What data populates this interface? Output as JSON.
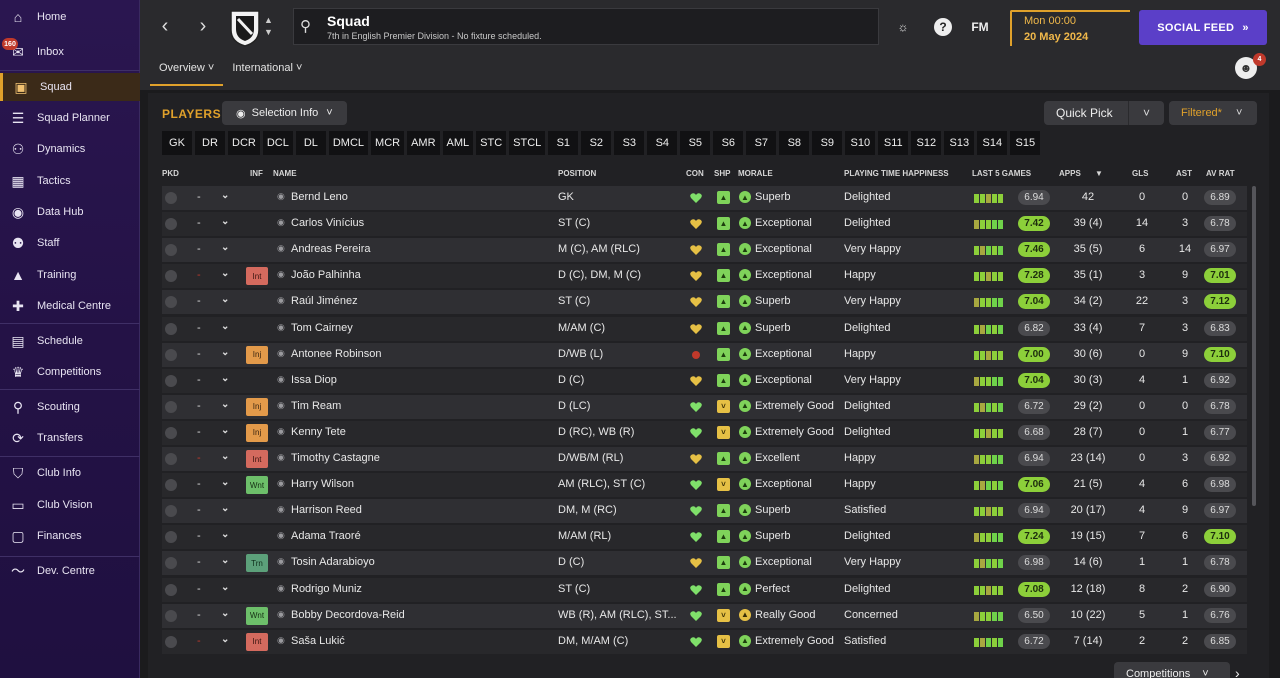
{
  "sidebar": {
    "inbox_badge": "160",
    "items": [
      {
        "label": "Home",
        "icon": "home-icon"
      },
      {
        "label": "Inbox",
        "icon": "inbox-icon"
      },
      {
        "label": "Squad",
        "icon": "shirt-icon"
      },
      {
        "label": "Squad Planner",
        "icon": "planner-icon"
      },
      {
        "label": "Dynamics",
        "icon": "dynamics-icon"
      },
      {
        "label": "Tactics",
        "icon": "tactics-icon"
      },
      {
        "label": "Data Hub",
        "icon": "data-hub-icon"
      },
      {
        "label": "Staff",
        "icon": "staff-icon"
      },
      {
        "label": "Training",
        "icon": "training-icon"
      },
      {
        "label": "Medical Centre",
        "icon": "medical-icon"
      },
      {
        "label": "Schedule",
        "icon": "calendar-icon"
      },
      {
        "label": "Competitions",
        "icon": "trophy-icon"
      },
      {
        "label": "Scouting",
        "icon": "search-icon"
      },
      {
        "label": "Transfers",
        "icon": "transfer-icon"
      },
      {
        "label": "Club Info",
        "icon": "shield-icon"
      },
      {
        "label": "Club Vision",
        "icon": "briefcase-icon"
      },
      {
        "label": "Finances",
        "icon": "money-icon"
      },
      {
        "label": "Dev. Centre",
        "icon": "trend-icon"
      }
    ]
  },
  "header": {
    "title": "Squad",
    "subtitle": "7th in English Premier Division - No fixture scheduled.",
    "fm_label": "FM",
    "date_time": "Mon 00:00",
    "date": "20 May 2024",
    "social_feed": "SOCIAL FEED",
    "avatar_badge": "4",
    "tabs": [
      "Overview",
      "International"
    ]
  },
  "toolbar": {
    "players_label": "PLAYERS",
    "selection_info": "Selection Info",
    "quick_pick": "Quick Pick",
    "filtered": "Filtered*",
    "competitions": "Competitions",
    "positions": [
      "GK",
      "DR",
      "DCR",
      "DCL",
      "DL",
      "DMCL",
      "MCR",
      "AMR",
      "AML",
      "STC",
      "STCL",
      "S1",
      "S2",
      "S3",
      "S4",
      "S5",
      "S6",
      "S7",
      "S8",
      "S9",
      "S10",
      "S11",
      "S12",
      "S13",
      "S14",
      "S15"
    ]
  },
  "columns": [
    "PKD",
    "INF",
    "NAME",
    "POSITION",
    "CON",
    "SHP",
    "MORALE",
    "PLAYING TIME HAPPINESS",
    "LAST 5 GAMES",
    "APPS",
    "GLS",
    "AST",
    "AV RAT"
  ],
  "players": [
    {
      "name": "Bernd Leno",
      "position": "GK",
      "morale": "Superb",
      "happiness": "Delighted",
      "last5": "6.94",
      "last5_good": false,
      "apps": "42",
      "gls": "0",
      "ast": "0",
      "avr": "6.89",
      "avr_good": false,
      "inf": "",
      "dash_red": false,
      "con": "green",
      "shp": "g",
      "mor": "g"
    },
    {
      "name": "Carlos Vinícius",
      "position": "ST (C)",
      "morale": "Exceptional",
      "happiness": "Delighted",
      "last5": "7.42",
      "last5_good": true,
      "apps": "39 (4)",
      "gls": "14",
      "ast": "3",
      "avr": "6.78",
      "avr_good": false,
      "inf": "",
      "dash_red": false,
      "con": "yellow",
      "shp": "g",
      "mor": "g"
    },
    {
      "name": "Andreas Pereira",
      "position": "M (C), AM (RLC)",
      "morale": "Exceptional",
      "happiness": "Very Happy",
      "last5": "7.46",
      "last5_good": true,
      "apps": "35 (5)",
      "gls": "6",
      "ast": "14",
      "avr": "6.97",
      "avr_good": false,
      "inf": "",
      "dash_red": false,
      "con": "yellow",
      "shp": "g",
      "mor": "g"
    },
    {
      "name": "João Palhinha",
      "position": "D (C), DM, M (C)",
      "morale": "Exceptional",
      "happiness": "Happy",
      "last5": "7.28",
      "last5_good": true,
      "apps": "35 (1)",
      "gls": "3",
      "ast": "9",
      "avr": "7.01",
      "avr_good": true,
      "inf": "Int",
      "dash_red": true,
      "con": "yellow",
      "shp": "g",
      "mor": "g"
    },
    {
      "name": "Raúl Jiménez",
      "position": "ST (C)",
      "morale": "Superb",
      "happiness": "Very Happy",
      "last5": "7.04",
      "last5_good": true,
      "apps": "34 (2)",
      "gls": "22",
      "ast": "3",
      "avr": "7.12",
      "avr_good": true,
      "inf": "",
      "dash_red": false,
      "con": "yellow",
      "shp": "g",
      "mor": "g"
    },
    {
      "name": "Tom Cairney",
      "position": "M/AM (C)",
      "morale": "Superb",
      "happiness": "Delighted",
      "last5": "6.82",
      "last5_good": false,
      "apps": "33 (4)",
      "gls": "7",
      "ast": "3",
      "avr": "6.83",
      "avr_good": false,
      "inf": "",
      "dash_red": false,
      "con": "yellow",
      "shp": "g",
      "mor": "g"
    },
    {
      "name": "Antonee Robinson",
      "position": "D/WB (L)",
      "morale": "Exceptional",
      "happiness": "Happy",
      "last5": "7.00",
      "last5_good": true,
      "apps": "30 (6)",
      "gls": "0",
      "ast": "9",
      "avr": "7.10",
      "avr_good": true,
      "inf": "Inj",
      "dash_red": false,
      "con": "red",
      "shp": "g",
      "mor": "g"
    },
    {
      "name": "Issa Diop",
      "position": "D (C)",
      "morale": "Exceptional",
      "happiness": "Very Happy",
      "last5": "7.04",
      "last5_good": true,
      "apps": "30 (3)",
      "gls": "4",
      "ast": "1",
      "avr": "6.92",
      "avr_good": false,
      "inf": "",
      "dash_red": false,
      "con": "yellow",
      "shp": "g",
      "mor": "g"
    },
    {
      "name": "Tim Ream",
      "position": "D (LC)",
      "morale": "Extremely Good",
      "happiness": "Delighted",
      "last5": "6.72",
      "last5_good": false,
      "apps": "29 (2)",
      "gls": "0",
      "ast": "0",
      "avr": "6.78",
      "avr_good": false,
      "inf": "Inj",
      "dash_red": false,
      "con": "green",
      "shp": "y",
      "mor": "g"
    },
    {
      "name": "Kenny Tete",
      "position": "D (RC), WB (R)",
      "morale": "Extremely Good",
      "happiness": "Delighted",
      "last5": "6.68",
      "last5_good": false,
      "apps": "28 (7)",
      "gls": "0",
      "ast": "1",
      "avr": "6.77",
      "avr_good": false,
      "inf": "Inj",
      "dash_red": false,
      "con": "green",
      "shp": "y",
      "mor": "g"
    },
    {
      "name": "Timothy Castagne",
      "position": "D/WB/M (RL)",
      "morale": "Excellent",
      "happiness": "Happy",
      "last5": "6.94",
      "last5_good": false,
      "apps": "23 (14)",
      "gls": "0",
      "ast": "3",
      "avr": "6.92",
      "avr_good": false,
      "inf": "Int",
      "dash_red": true,
      "con": "yellow",
      "shp": "g",
      "mor": "g"
    },
    {
      "name": "Harry Wilson",
      "position": "AM (RLC), ST (C)",
      "morale": "Exceptional",
      "happiness": "Happy",
      "last5": "7.06",
      "last5_good": true,
      "apps": "21 (5)",
      "gls": "4",
      "ast": "6",
      "avr": "6.98",
      "avr_good": false,
      "inf": "Wnt",
      "dash_red": false,
      "con": "green",
      "shp": "y",
      "mor": "g"
    },
    {
      "name": "Harrison Reed",
      "position": "DM, M (RC)",
      "morale": "Superb",
      "happiness": "Satisfied",
      "last5": "6.94",
      "last5_good": false,
      "apps": "20 (17)",
      "gls": "4",
      "ast": "9",
      "avr": "6.97",
      "avr_good": false,
      "inf": "",
      "dash_red": false,
      "con": "green",
      "shp": "g",
      "mor": "g"
    },
    {
      "name": "Adama Traoré",
      "position": "M/AM (RL)",
      "morale": "Superb",
      "happiness": "Delighted",
      "last5": "7.24",
      "last5_good": true,
      "apps": "19 (15)",
      "gls": "7",
      "ast": "6",
      "avr": "7.10",
      "avr_good": true,
      "inf": "",
      "dash_red": false,
      "con": "green",
      "shp": "g",
      "mor": "g"
    },
    {
      "name": "Tosin Adarabioyo",
      "position": "D (C)",
      "morale": "Exceptional",
      "happiness": "Very Happy",
      "last5": "6.98",
      "last5_good": false,
      "apps": "14 (6)",
      "gls": "1",
      "ast": "1",
      "avr": "6.78",
      "avr_good": false,
      "inf": "Trn",
      "dash_red": false,
      "con": "yellow",
      "shp": "g",
      "mor": "g"
    },
    {
      "name": "Rodrigo Muniz",
      "position": "ST (C)",
      "morale": "Perfect",
      "happiness": "Delighted",
      "last5": "7.08",
      "last5_good": true,
      "apps": "12 (18)",
      "gls": "8",
      "ast": "2",
      "avr": "6.90",
      "avr_good": false,
      "inf": "",
      "dash_red": false,
      "con": "green",
      "shp": "g",
      "mor": "g"
    },
    {
      "name": "Bobby Decordova-Reid",
      "position": "WB (R), AM (RLC), ST...",
      "morale": "Really Good",
      "happiness": "Concerned",
      "last5": "6.50",
      "last5_good": false,
      "apps": "10 (22)",
      "gls": "5",
      "ast": "1",
      "avr": "6.76",
      "avr_good": false,
      "inf": "Wnt",
      "dash_red": false,
      "con": "green",
      "shp": "y",
      "mor": "y"
    },
    {
      "name": "Saša Lukić",
      "position": "DM, M/AM (C)",
      "morale": "Extremely Good",
      "happiness": "Satisfied",
      "last5": "6.72",
      "last5_good": false,
      "apps": "7 (14)",
      "gls": "2",
      "ast": "2",
      "avr": "6.85",
      "avr_good": false,
      "inf": "Int",
      "dash_red": true,
      "con": "green",
      "shp": "y",
      "mor": "g"
    }
  ],
  "colors": {
    "accent": "#e0a12b",
    "social": "#5b3fc8",
    "good": "#8ccf3a"
  }
}
